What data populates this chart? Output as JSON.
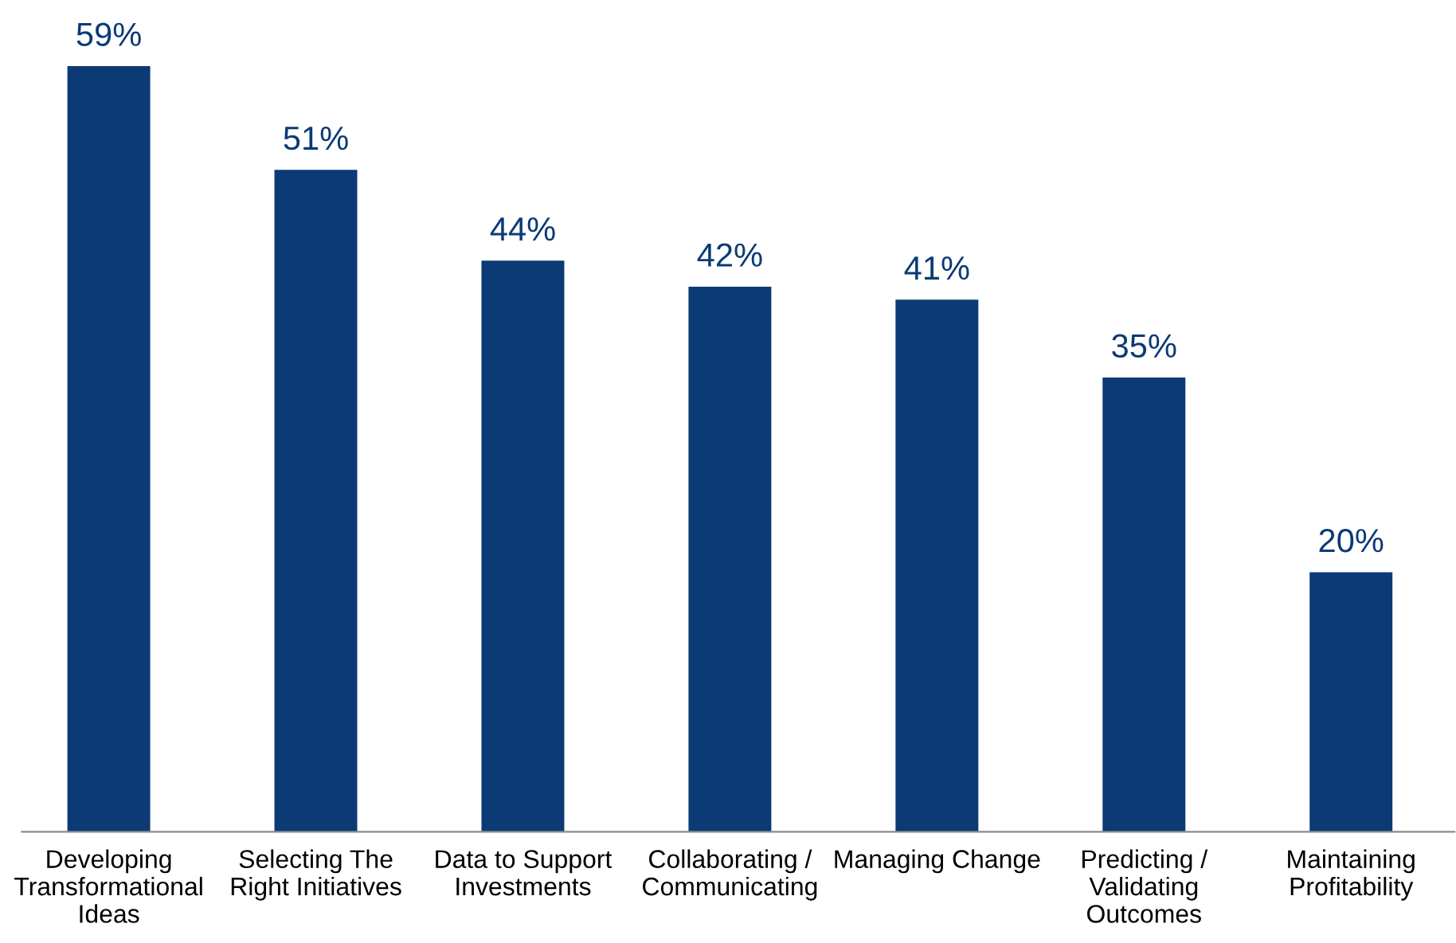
{
  "chart_data": {
    "type": "bar",
    "categories": [
      "Developing\nTransformational\nIdeas",
      "Selecting The\nRight Initiatives",
      "Data to Support\nInvestments",
      "Collaborating /\nCommunicating",
      "Managing Change",
      "Predicting /\nValidating\nOutcomes",
      "Maintaining\nProfitability"
    ],
    "values": [
      59,
      51,
      44,
      42,
      41,
      35,
      20
    ],
    "value_labels": [
      "59%",
      "51%",
      "44%",
      "42%",
      "41%",
      "35%",
      "20%"
    ],
    "color": "#0b3a75",
    "grid": false,
    "legend": false
  }
}
